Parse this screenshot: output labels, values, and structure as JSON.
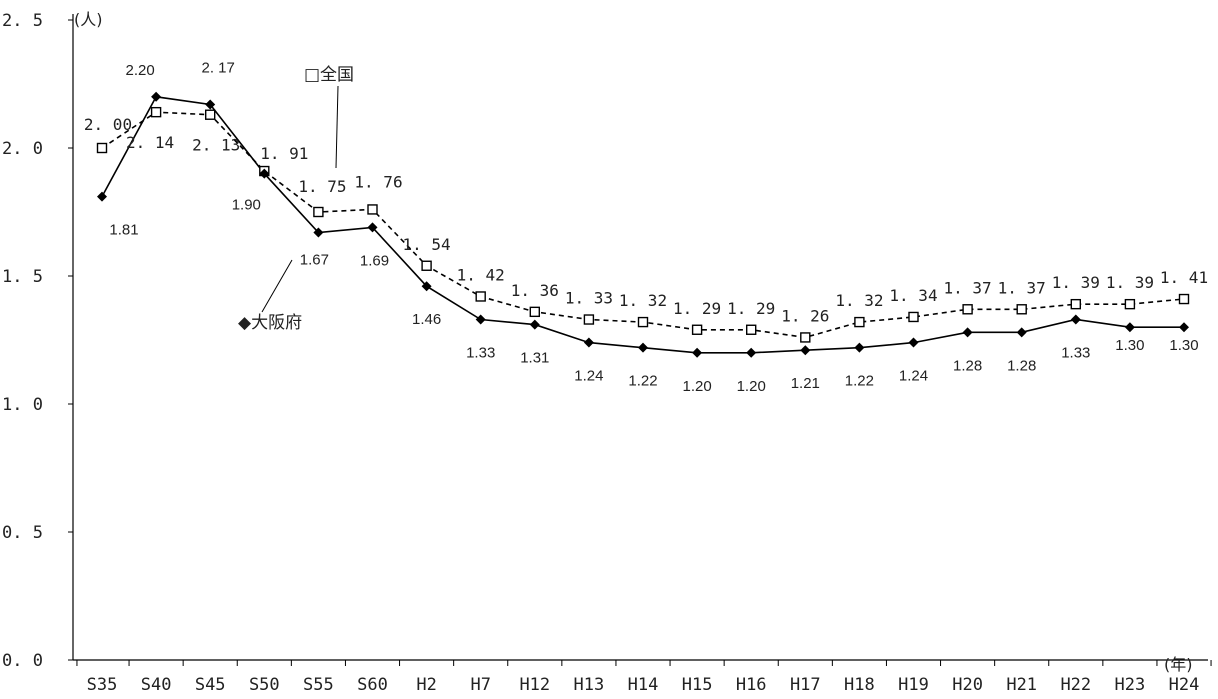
{
  "chart_data": {
    "type": "line",
    "yunit": "(人)",
    "xunit": "(年)",
    "ylim": [
      0,
      2.5
    ],
    "ytick_labels": [
      "0. 0",
      "0. 5",
      "1. 0",
      "1. 5",
      "2. 0",
      "2. 5"
    ],
    "yticks": [
      0,
      0.5,
      1.0,
      1.5,
      2.0,
      2.5
    ],
    "categories": [
      "S35",
      "S40",
      "S45",
      "S50",
      "S55",
      "S60",
      "H2",
      "H7",
      "H12",
      "H13",
      "H14",
      "H15",
      "H16",
      "H17",
      "H18",
      "H19",
      "H20",
      "H21",
      "H22",
      "H23",
      "H24"
    ],
    "series": [
      {
        "name": "□全国",
        "marker": "square-open",
        "line": "dashed",
        "color": "#000000",
        "values": [
          2.0,
          2.14,
          2.13,
          1.91,
          1.75,
          1.76,
          1.54,
          1.42,
          1.36,
          1.33,
          1.32,
          1.29,
          1.29,
          1.26,
          1.32,
          1.34,
          1.37,
          1.37,
          1.39,
          1.39,
          1.41
        ],
        "labels": [
          "2. 00",
          "2. 14",
          "2. 13",
          "1. 91",
          "1. 75",
          "1. 76",
          "1. 54",
          "1. 42",
          "1. 36",
          "1. 33",
          "1. 32",
          "1. 29",
          "1. 29",
          "1. 26",
          "1. 32",
          "1. 34",
          "1. 37",
          "1. 37",
          "1. 39",
          "1. 39",
          "1. 41"
        ]
      },
      {
        "name": "◆大阪府",
        "marker": "diamond-filled",
        "line": "solid",
        "color": "#000000",
        "values": [
          1.81,
          2.2,
          2.17,
          1.9,
          1.67,
          1.69,
          1.46,
          1.33,
          1.31,
          1.24,
          1.22,
          1.2,
          1.2,
          1.21,
          1.22,
          1.24,
          1.28,
          1.28,
          1.33,
          1.3,
          1.3
        ],
        "labels": [
          "1.81",
          "2.20",
          "2. 17",
          "1.90",
          "1.67",
          "1.69",
          "1.46",
          "1.33",
          "1.31",
          "1.24",
          "1.22",
          "1.20",
          "1.20",
          "1.21",
          "1.22",
          "1.24",
          "1.28",
          "1.28",
          "1.33",
          "1.30",
          "1.30"
        ]
      }
    ],
    "grid": false
  }
}
